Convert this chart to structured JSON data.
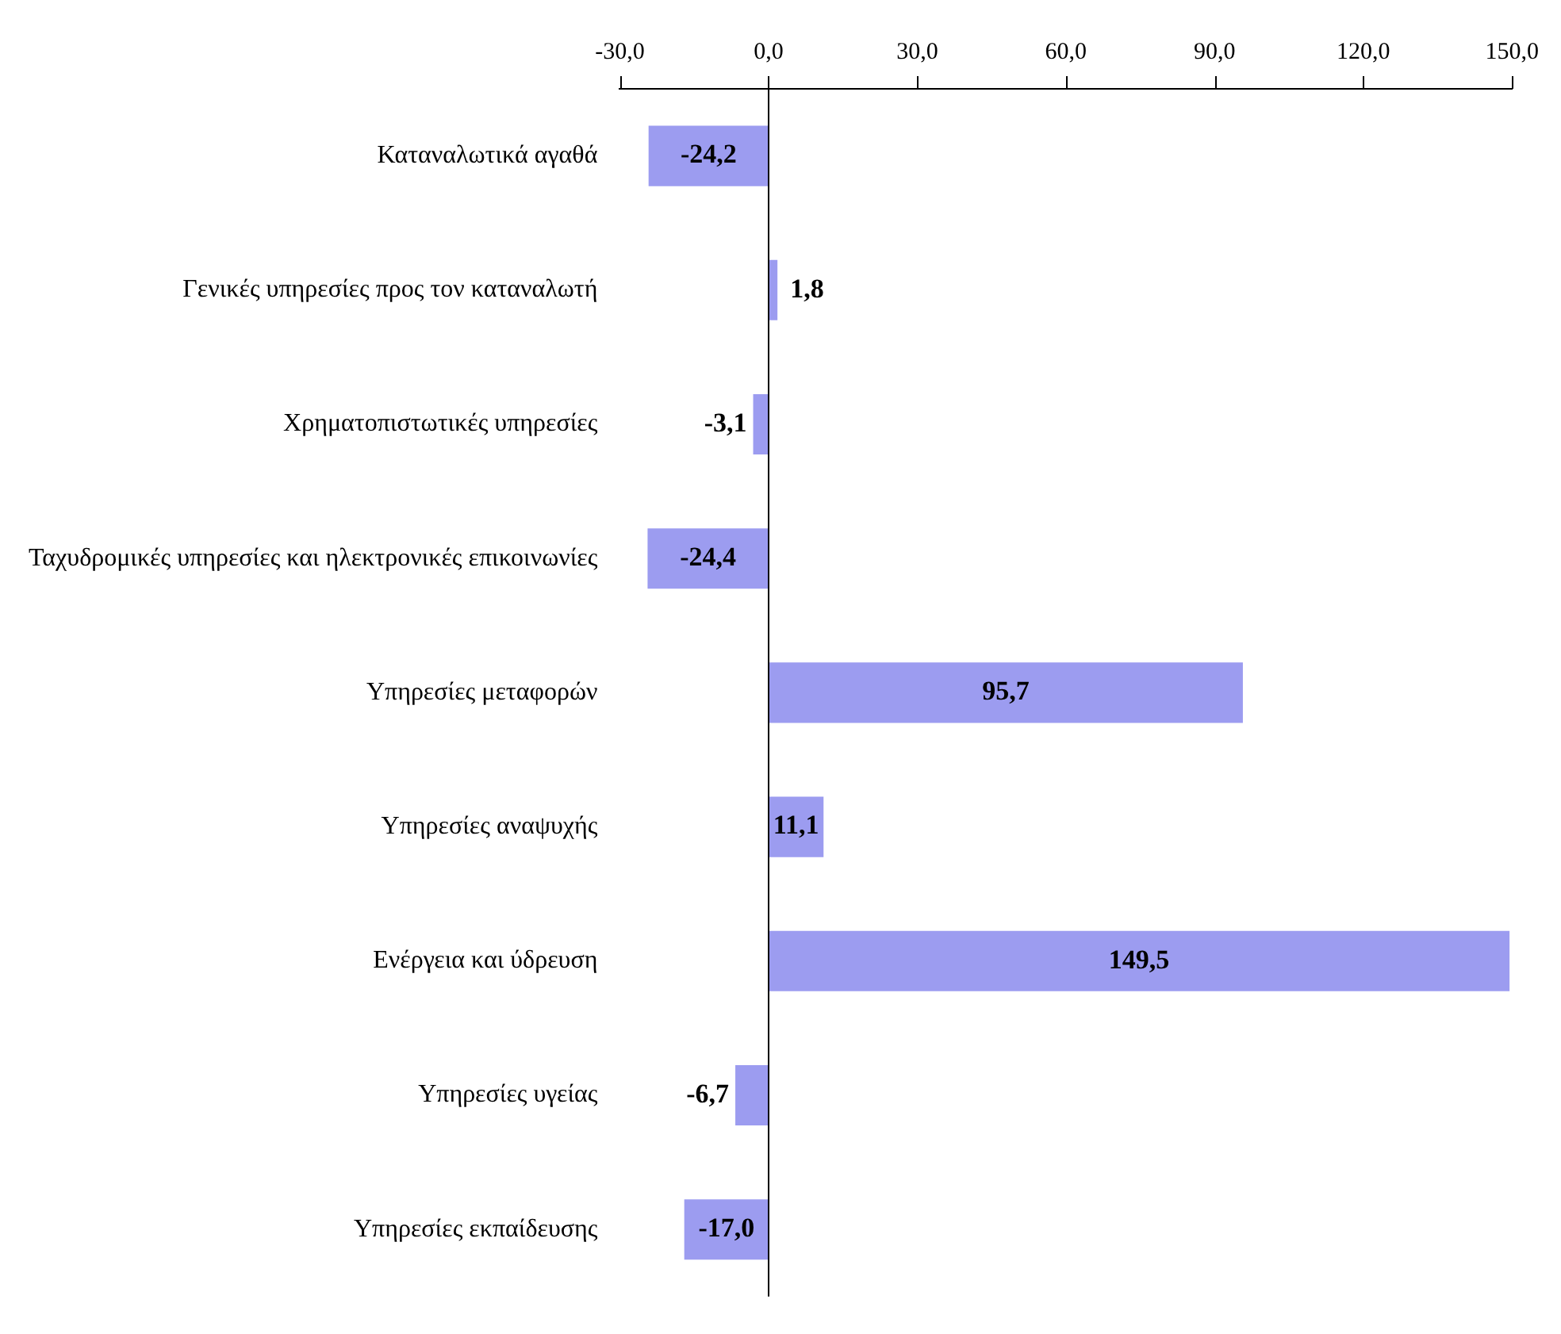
{
  "chart_data": {
    "type": "bar",
    "orientation": "horizontal",
    "categories": [
      "Καταναλωτικά αγαθά",
      "Γενικές υπηρεσίες προς τον καταναλωτή",
      "Χρηματοπιστωτικές υπηρεσίες",
      "Ταχυδρομικές υπηρεσίες και ηλεκτρονικές επικοινωνίες",
      "Υπηρεσίες μεταφορών",
      "Υπηρεσίες αναψυχής",
      "Ενέργεια και ύδρευση",
      "Υπηρεσίες υγείας",
      "Υπηρεσίες εκπαίδευσης"
    ],
    "values": [
      -24.2,
      1.8,
      -3.1,
      -24.4,
      95.7,
      11.1,
      149.5,
      -6.7,
      -17.0
    ],
    "value_labels": [
      "-24,2",
      "1,8",
      "-3,1",
      "-24,4",
      "95,7",
      "11,1",
      "149,5",
      "-6,7",
      "-17,0"
    ],
    "color": "#9c9cf0",
    "xlim": [
      -30,
      150
    ],
    "xticks": [
      {
        "value": -30,
        "label": "-30,0"
      },
      {
        "value": 0,
        "label": "0,0"
      },
      {
        "value": 30,
        "label": "30,0"
      },
      {
        "value": 60,
        "label": "60,0"
      },
      {
        "value": 90,
        "label": "90,0"
      },
      {
        "value": 120,
        "label": "120,0"
      },
      {
        "value": 150,
        "label": "150,0"
      }
    ],
    "ref_lines": [
      {
        "axis": "x",
        "value": 0,
        "color": "#000000"
      }
    ],
    "grid": false,
    "legend": false
  }
}
